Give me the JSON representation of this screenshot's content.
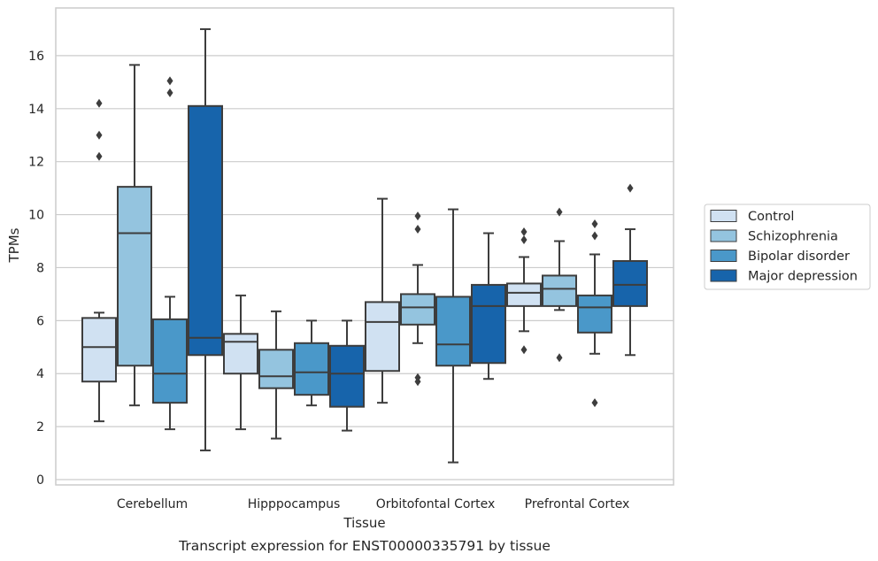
{
  "chart_data": {
    "type": "box",
    "caption": "Transcript expression for ENST00000335791 by tissue",
    "xlabel": "Tissue",
    "ylabel": "TPMs",
    "ylim": [
      -0.2,
      17.8
    ],
    "yticks": [
      0,
      2,
      4,
      6,
      8,
      10,
      12,
      14,
      16
    ],
    "grid": "horizontal",
    "legend_position": "right",
    "categories": [
      "Cerebellum",
      "Hipppocampus",
      "Orbitofontal Cortex",
      "Prefrontal Cortex"
    ],
    "series": [
      {
        "name": "Control",
        "color": "#d0e1f2",
        "boxes": [
          {
            "whisker_low": 2.2,
            "q1": 3.7,
            "median": 5.0,
            "q3": 6.1,
            "whisker_high": 6.3,
            "outliers": [
              14.2,
              13.0,
              12.2
            ]
          },
          {
            "whisker_low": 1.9,
            "q1": 4.0,
            "median": 5.2,
            "q3": 5.5,
            "whisker_high": 6.95,
            "outliers": []
          },
          {
            "whisker_low": 2.9,
            "q1": 4.1,
            "median": 5.95,
            "q3": 6.7,
            "whisker_high": 10.6,
            "outliers": []
          },
          {
            "whisker_low": 5.6,
            "q1": 6.55,
            "median": 7.05,
            "q3": 7.4,
            "whisker_high": 8.4,
            "outliers": [
              9.35,
              9.05,
              4.9
            ]
          }
        ]
      },
      {
        "name": "Schizophrenia",
        "color": "#94c4df",
        "boxes": [
          {
            "whisker_low": 2.8,
            "q1": 4.3,
            "median": 9.3,
            "q3": 11.05,
            "whisker_high": 15.65,
            "outliers": []
          },
          {
            "whisker_low": 1.55,
            "q1": 3.45,
            "median": 3.9,
            "q3": 4.9,
            "whisker_high": 6.35,
            "outliers": []
          },
          {
            "whisker_low": 5.15,
            "q1": 5.85,
            "median": 6.5,
            "q3": 7.0,
            "whisker_high": 8.1,
            "outliers": [
              9.95,
              9.45,
              3.85,
              3.7
            ]
          },
          {
            "whisker_low": 6.4,
            "q1": 6.55,
            "median": 7.2,
            "q3": 7.7,
            "whisker_high": 9.0,
            "outliers": [
              10.1,
              4.6
            ]
          }
        ]
      },
      {
        "name": "Bipolar disorder",
        "color": "#4a98c9",
        "boxes": [
          {
            "whisker_low": 1.9,
            "q1": 2.9,
            "median": 4.0,
            "q3": 6.05,
            "whisker_high": 6.9,
            "outliers": [
              15.05,
              14.6
            ]
          },
          {
            "whisker_low": 2.8,
            "q1": 3.2,
            "median": 4.05,
            "q3": 5.15,
            "whisker_high": 6.0,
            "outliers": []
          },
          {
            "whisker_low": 0.65,
            "q1": 4.3,
            "median": 5.1,
            "q3": 6.9,
            "whisker_high": 10.2,
            "outliers": []
          },
          {
            "whisker_low": 4.75,
            "q1": 5.55,
            "median": 6.5,
            "q3": 6.95,
            "whisker_high": 8.5,
            "outliers": [
              9.65,
              9.2,
              2.9
            ]
          }
        ]
      },
      {
        "name": "Major depression",
        "color": "#1764ab",
        "boxes": [
          {
            "whisker_low": 1.1,
            "q1": 4.7,
            "median": 5.35,
            "q3": 14.1,
            "whisker_high": 17.0,
            "outliers": []
          },
          {
            "whisker_low": 1.85,
            "q1": 2.75,
            "median": 4.0,
            "q3": 5.05,
            "whisker_high": 6.0,
            "outliers": []
          },
          {
            "whisker_low": 3.8,
            "q1": 4.4,
            "median": 6.55,
            "q3": 7.35,
            "whisker_high": 9.3,
            "outliers": []
          },
          {
            "whisker_low": 4.7,
            "q1": 6.55,
            "median": 7.35,
            "q3": 8.25,
            "whisker_high": 9.45,
            "outliers": [
              11.0
            ]
          }
        ]
      }
    ]
  }
}
